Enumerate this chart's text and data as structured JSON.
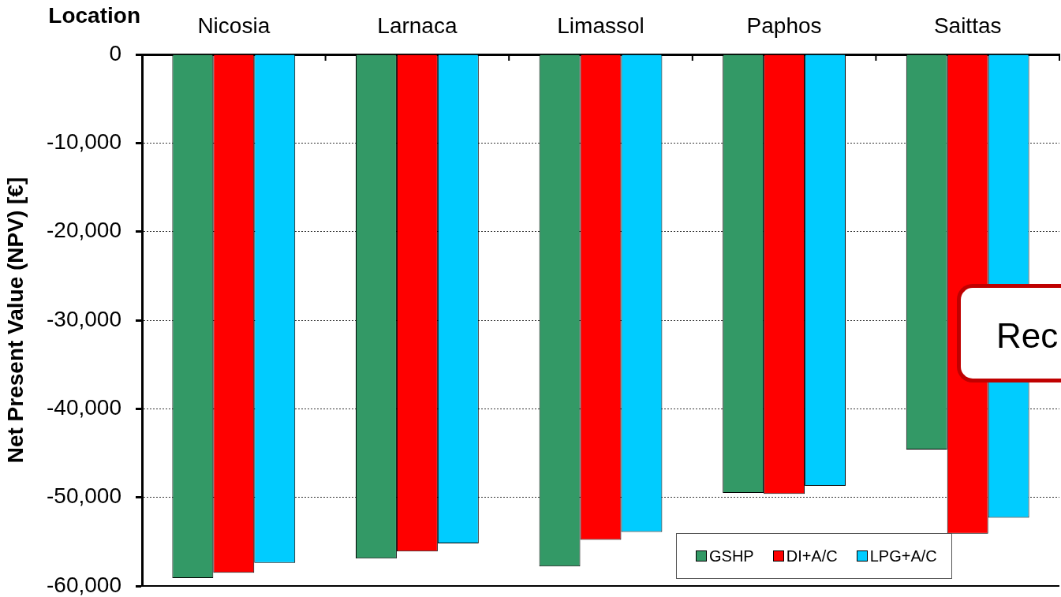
{
  "chart_data": {
    "type": "bar",
    "xlabel": "Location",
    "ylabel": "Net Present Value (NPV) [€]",
    "categories": [
      "Nicosia",
      "Larnaca",
      "Limassol",
      "Paphos",
      "Saittas"
    ],
    "series": [
      {
        "name": "GSHP",
        "color": "#339966",
        "values": [
          -59100,
          -56900,
          -57800,
          -49500,
          -44600
        ]
      },
      {
        "name": "DI+A/C",
        "color": "#ff0000",
        "values": [
          -58500,
          -56100,
          -54800,
          -49600,
          -54100
        ]
      },
      {
        "name": "LPG+A/C",
        "color": "#00ccff",
        "values": [
          -57400,
          -55200,
          -53900,
          -48700,
          -52300
        ]
      }
    ],
    "ylim": [
      -60000,
      0
    ],
    "yticks": [
      {
        "value": -60000,
        "label": "-60,000"
      },
      {
        "value": -50000,
        "label": "-50,000"
      },
      {
        "value": -40000,
        "label": "-40,000"
      },
      {
        "value": -30000,
        "label": "-30,000"
      },
      {
        "value": -20000,
        "label": "-20,000"
      },
      {
        "value": -10000,
        "label": "-10,000"
      },
      0
    ],
    "grid": "y",
    "legend": "bottom right",
    "annotations": [
      "Rec"
    ]
  }
}
